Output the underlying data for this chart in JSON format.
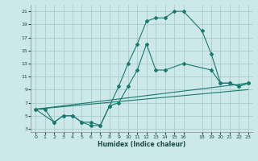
{
  "xlabel": "Humidex (Indice chaleur)",
  "background_color": "#cce8e8",
  "grid_color": "#aacccc",
  "line_color": "#1a7a6e",
  "xlim": [
    -0.5,
    23.5
  ],
  "ylim": [
    2.5,
    22
  ],
  "xticks": [
    0,
    1,
    2,
    3,
    4,
    5,
    6,
    7,
    8,
    9,
    10,
    11,
    12,
    13,
    14,
    15,
    16,
    18,
    19,
    20,
    21,
    22,
    23
  ],
  "yticks": [
    3,
    5,
    7,
    9,
    11,
    13,
    15,
    17,
    19,
    21
  ],
  "lines": [
    {
      "x": [
        0,
        1,
        2,
        3,
        4,
        5,
        6,
        7,
        8,
        9,
        10,
        11,
        12,
        13,
        14,
        15,
        16,
        18,
        19,
        20,
        21,
        22,
        23
      ],
      "y": [
        6,
        6,
        4,
        5,
        5,
        4,
        4,
        3.5,
        6.5,
        9.5,
        13,
        16,
        19.5,
        20,
        20,
        21,
        21,
        18,
        14.5,
        10,
        10,
        9.5,
        10
      ],
      "has_markers": true
    },
    {
      "x": [
        0,
        2,
        3,
        4,
        5,
        6,
        7,
        8,
        9,
        10,
        11,
        12,
        13,
        14,
        16,
        19,
        20,
        21,
        22,
        23
      ],
      "y": [
        6,
        4,
        5,
        5,
        4,
        3.5,
        3.5,
        6.5,
        7,
        9.5,
        12,
        16,
        12,
        12,
        13,
        12,
        10,
        10,
        9.5,
        10
      ],
      "has_markers": true
    },
    {
      "x": [
        0,
        23
      ],
      "y": [
        6,
        10
      ],
      "has_markers": false
    },
    {
      "x": [
        0,
        23
      ],
      "y": [
        6,
        9
      ],
      "has_markers": false
    }
  ]
}
